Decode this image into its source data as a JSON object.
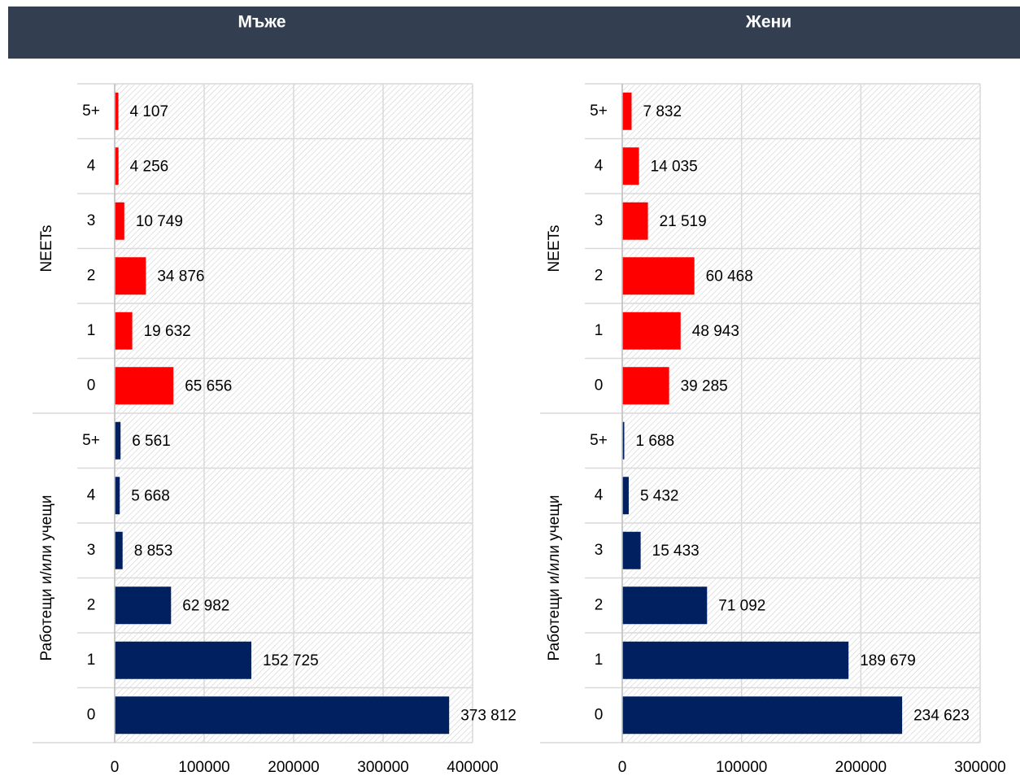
{
  "chart_data": [
    {
      "type": "bar",
      "title": "Мъже",
      "orientation": "horizontal",
      "series": [
        {
          "name": "NEETs",
          "color": "#ff0000",
          "categories": [
            "5+",
            "4",
            "3",
            "2",
            "1",
            "0"
          ],
          "values": [
            4107,
            4256,
            10749,
            34876,
            19632,
            65656
          ],
          "value_labels": [
            "4 107",
            "4 256",
            "10 749",
            "34 876",
            "19 632",
            "65 656"
          ]
        },
        {
          "name": "Работещи и/или учещи",
          "color": "#002060",
          "categories": [
            "5+",
            "4",
            "3",
            "2",
            "1",
            "0"
          ],
          "values": [
            6561,
            5668,
            8853,
            62982,
            152725,
            373812
          ],
          "value_labels": [
            "6 561",
            "5 668",
            "8 853",
            "62 982",
            "152 725",
            "373 812"
          ]
        }
      ],
      "xlim": [
        0,
        400000
      ],
      "xticks": [
        0,
        100000,
        200000,
        300000,
        400000
      ],
      "grid": true
    },
    {
      "type": "bar",
      "title": "Жени",
      "orientation": "horizontal",
      "series": [
        {
          "name": "NEETs",
          "color": "#ff0000",
          "categories": [
            "5+",
            "4",
            "3",
            "2",
            "1",
            "0"
          ],
          "values": [
            7832,
            14035,
            21519,
            60468,
            48943,
            39285
          ],
          "value_labels": [
            "7 832",
            "14 035",
            "21 519",
            "60 468",
            "48 943",
            "39 285"
          ]
        },
        {
          "name": "Работещи и/или учещи",
          "color": "#002060",
          "categories": [
            "5+",
            "4",
            "3",
            "2",
            "1",
            "0"
          ],
          "values": [
            1688,
            5432,
            15433,
            71092,
            189679,
            234623
          ],
          "value_labels": [
            "1 688",
            "5 432",
            "15 433",
            "71 092",
            "189 679",
            "234 623"
          ]
        }
      ],
      "xlim": [
        0,
        300000
      ],
      "xticks": [
        0,
        100000,
        200000,
        300000
      ],
      "grid": true
    }
  ]
}
